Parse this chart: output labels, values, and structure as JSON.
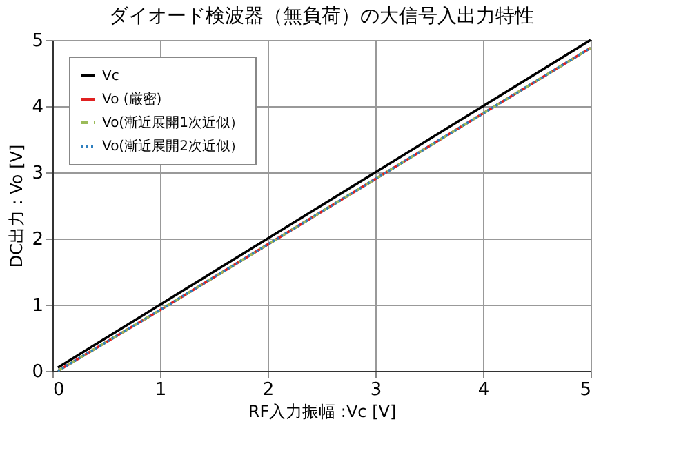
{
  "chart_data": {
    "type": "line",
    "title": "ダイオード検波器（無負荷）の大信号入出力特性",
    "xlabel": "RF入力振幅 :Vc [V]",
    "ylabel": "DC出力 : Vo [V]",
    "xlim": [
      0,
      5
    ],
    "ylim": [
      0,
      5
    ],
    "xticks": [
      0,
      1,
      2,
      3,
      4,
      5
    ],
    "yticks": [
      0,
      1,
      2,
      3,
      4,
      5
    ],
    "grid": true,
    "legend": "top left",
    "x": [
      0.05,
      1,
      2,
      3,
      4,
      5
    ],
    "series": [
      {
        "name": "Vc",
        "color": "#000000",
        "line_style": "solid",
        "values": [
          0.05,
          1,
          2,
          3,
          4,
          5
        ]
      },
      {
        "name": "Vo (厳密)",
        "color": "#e02020",
        "line_style": "solid",
        "values": [
          0,
          0.92,
          1.91,
          2.9,
          3.89,
          4.88
        ]
      },
      {
        "name": "Vo(漸近展開1次近似）",
        "color": "#9bbb59",
        "line_style": "dashed",
        "values": [
          0,
          0.92,
          1.91,
          2.9,
          3.89,
          4.88
        ]
      },
      {
        "name": "Vo(漸近展開2次近似）",
        "color": "#2e7fbf",
        "line_style": "dotted",
        "values": [
          0,
          0.92,
          1.91,
          2.9,
          3.89,
          4.88
        ]
      }
    ]
  }
}
